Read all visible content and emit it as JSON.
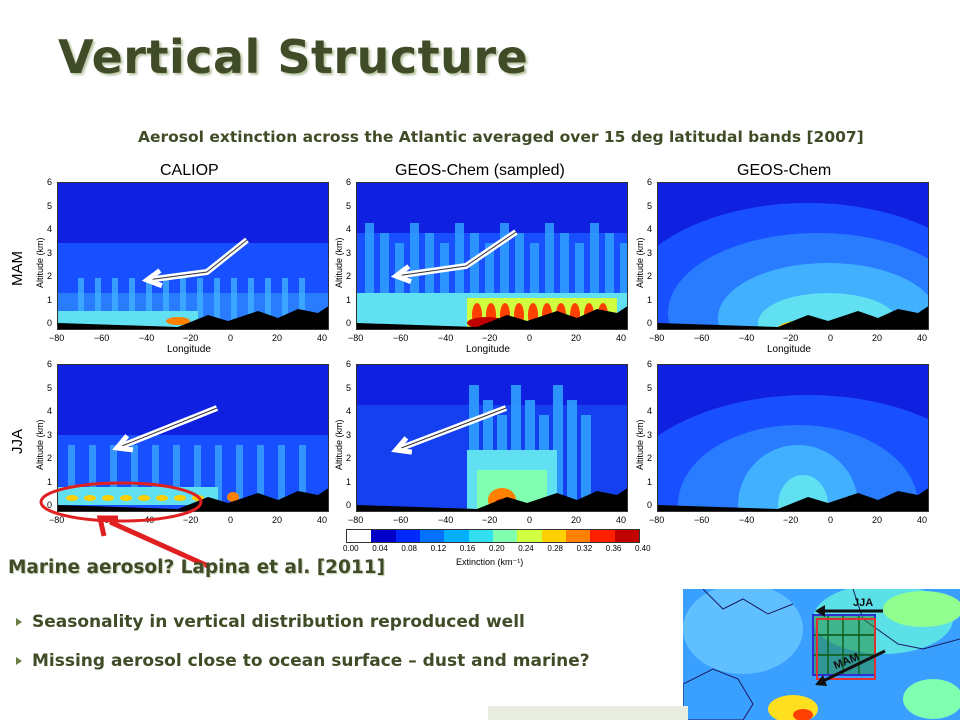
{
  "title": "Vertical Structure",
  "subtitle": "Aerosol extinction across the Atlantic averaged over 15 deg latitudal bands [2007]",
  "columns": [
    "CALIOP",
    "GEOS-Chem (sampled)",
    "GEOS-Chem"
  ],
  "rows": [
    "MAM",
    "JJA"
  ],
  "yaxis_label": "Altitude (km)",
  "yticks": [
    "0",
    "1",
    "2",
    "3",
    "4",
    "5",
    "6"
  ],
  "xaxis_label": "Longitude",
  "xticks": [
    "−80",
    "−60",
    "−40",
    "−20",
    "0",
    "20",
    "40"
  ],
  "colorbar": {
    "ticks": [
      "0.00",
      "0.04",
      "0.08",
      "0.12",
      "0.16",
      "0.20",
      "0.24",
      "0.28",
      "0.32",
      "0.36",
      "0.40"
    ],
    "label": "Extinction (km⁻¹)",
    "colors": [
      "#ffffff",
      "#0000c8",
      "#0028ff",
      "#0070ff",
      "#00b0ff",
      "#30e0f0",
      "#80ffb0",
      "#d0ff40",
      "#ffd000",
      "#ff8000",
      "#ff2000",
      "#c00000"
    ]
  },
  "marine_text": "Marine aerosol? Lapina et al. [2011]",
  "bullets": [
    "Seasonality in vertical distribution reproduced well",
    "Missing aerosol close to ocean surface – dust and marine?"
  ],
  "map_labels": {
    "jja": "JJA",
    "mam": "MAM"
  },
  "colors": {
    "title": "#3f4c27",
    "accent": "#6b7d44",
    "highlight": "#e02020"
  }
}
